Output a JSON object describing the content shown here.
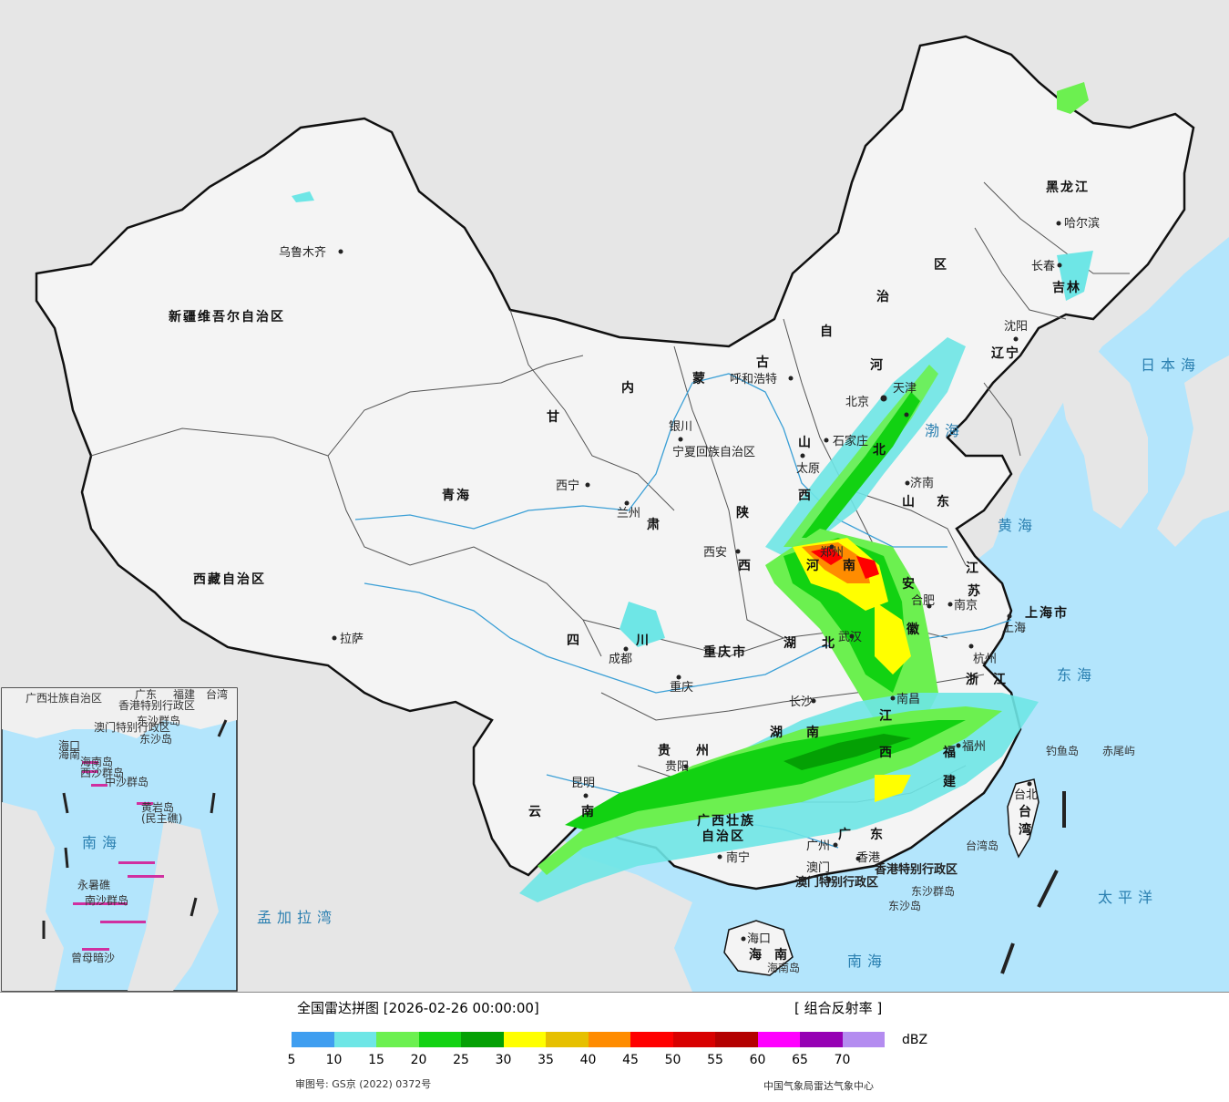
{
  "colors": {
    "sea": "#b3e5fc",
    "land_foreign": "#e6e6e6",
    "china_land": "#f4f4f4",
    "border": "#111111",
    "river": "#3a9fd6"
  },
  "provinces": [
    "新疆维吾尔自治区",
    "西藏自治区",
    "青海",
    "甘",
    "肃",
    "内",
    "蒙",
    "古",
    "自",
    "治",
    "区",
    "黑龙江",
    "吉林",
    "辽宁",
    "河",
    "北",
    "山",
    "西",
    "陕",
    "西",
    "四",
    "川",
    "重庆市",
    "湖",
    "北",
    "湖",
    "南",
    "广西壮族",
    "自治区",
    "广",
    "东",
    "贵",
    "州",
    "云",
    "南",
    "山",
    "东",
    "江",
    "苏",
    "浙",
    "江",
    "江",
    "西",
    "福",
    "建",
    "上海市",
    "台",
    "湾",
    "海",
    "南",
    "河",
    "南",
    "安",
    "徽",
    "宁夏回族自治区"
  ],
  "cities": [
    "乌鲁木齐",
    "拉萨",
    "西宁",
    "兰州",
    "银川",
    "呼和浩特",
    "北京",
    "天津",
    "石家庄",
    "太原",
    "西安",
    "成都",
    "重庆",
    "昆明",
    "贵阳",
    "南宁",
    "长沙",
    "武汉",
    "郑州",
    "济南",
    "合肥",
    "南京",
    "上海",
    "杭州",
    "南昌",
    "福州",
    "台北",
    "广州",
    "澳门",
    "香港",
    "海口",
    "沈阳",
    "长春",
    "哈尔滨"
  ],
  "seas": [
    "日本海",
    "渤海",
    "黄海",
    "东海",
    "太平洋",
    "南海",
    "孟加拉湾"
  ],
  "islands": [
    "钓鱼岛",
    "赤尾屿",
    "台湾岛",
    "东沙群岛",
    "东沙岛",
    "海南岛",
    "香港特别行政区",
    "澳门特别行政区"
  ],
  "inset": {
    "labels": [
      "广西壮族自治区",
      "广东",
      "福建",
      "台湾",
      "香港特别行政区",
      "澳门特别行政区",
      "东沙群岛",
      "东沙岛",
      "海口",
      "海南",
      "海南岛",
      "西沙群岛",
      "中沙群岛",
      "黄岩岛",
      "(民主礁)",
      "南海",
      "永暑礁",
      "南沙群岛",
      "曾母暗沙"
    ]
  },
  "footer": {
    "title": "全国雷达拼图 [2026-02-26 00:00:00]",
    "product": "[ 组合反射率 ]",
    "unit": "dBZ",
    "approval": "审图号: GS京 (2022) 0372号",
    "agency": "中国气象局雷达气象中心"
  },
  "legend": {
    "ticks": [
      "5",
      "10",
      "15",
      "20",
      "25",
      "30",
      "35",
      "40",
      "45",
      "50",
      "55",
      "60",
      "65",
      "70"
    ],
    "colors": [
      "#3f9ef0",
      "#6ee6e6",
      "#6cf050",
      "#12d212",
      "#04a004",
      "#ffff00",
      "#e6c000",
      "#ff8c00",
      "#ff0000",
      "#d80000",
      "#b40000",
      "#ff00ff",
      "#9600b4",
      "#b48cf0"
    ]
  }
}
